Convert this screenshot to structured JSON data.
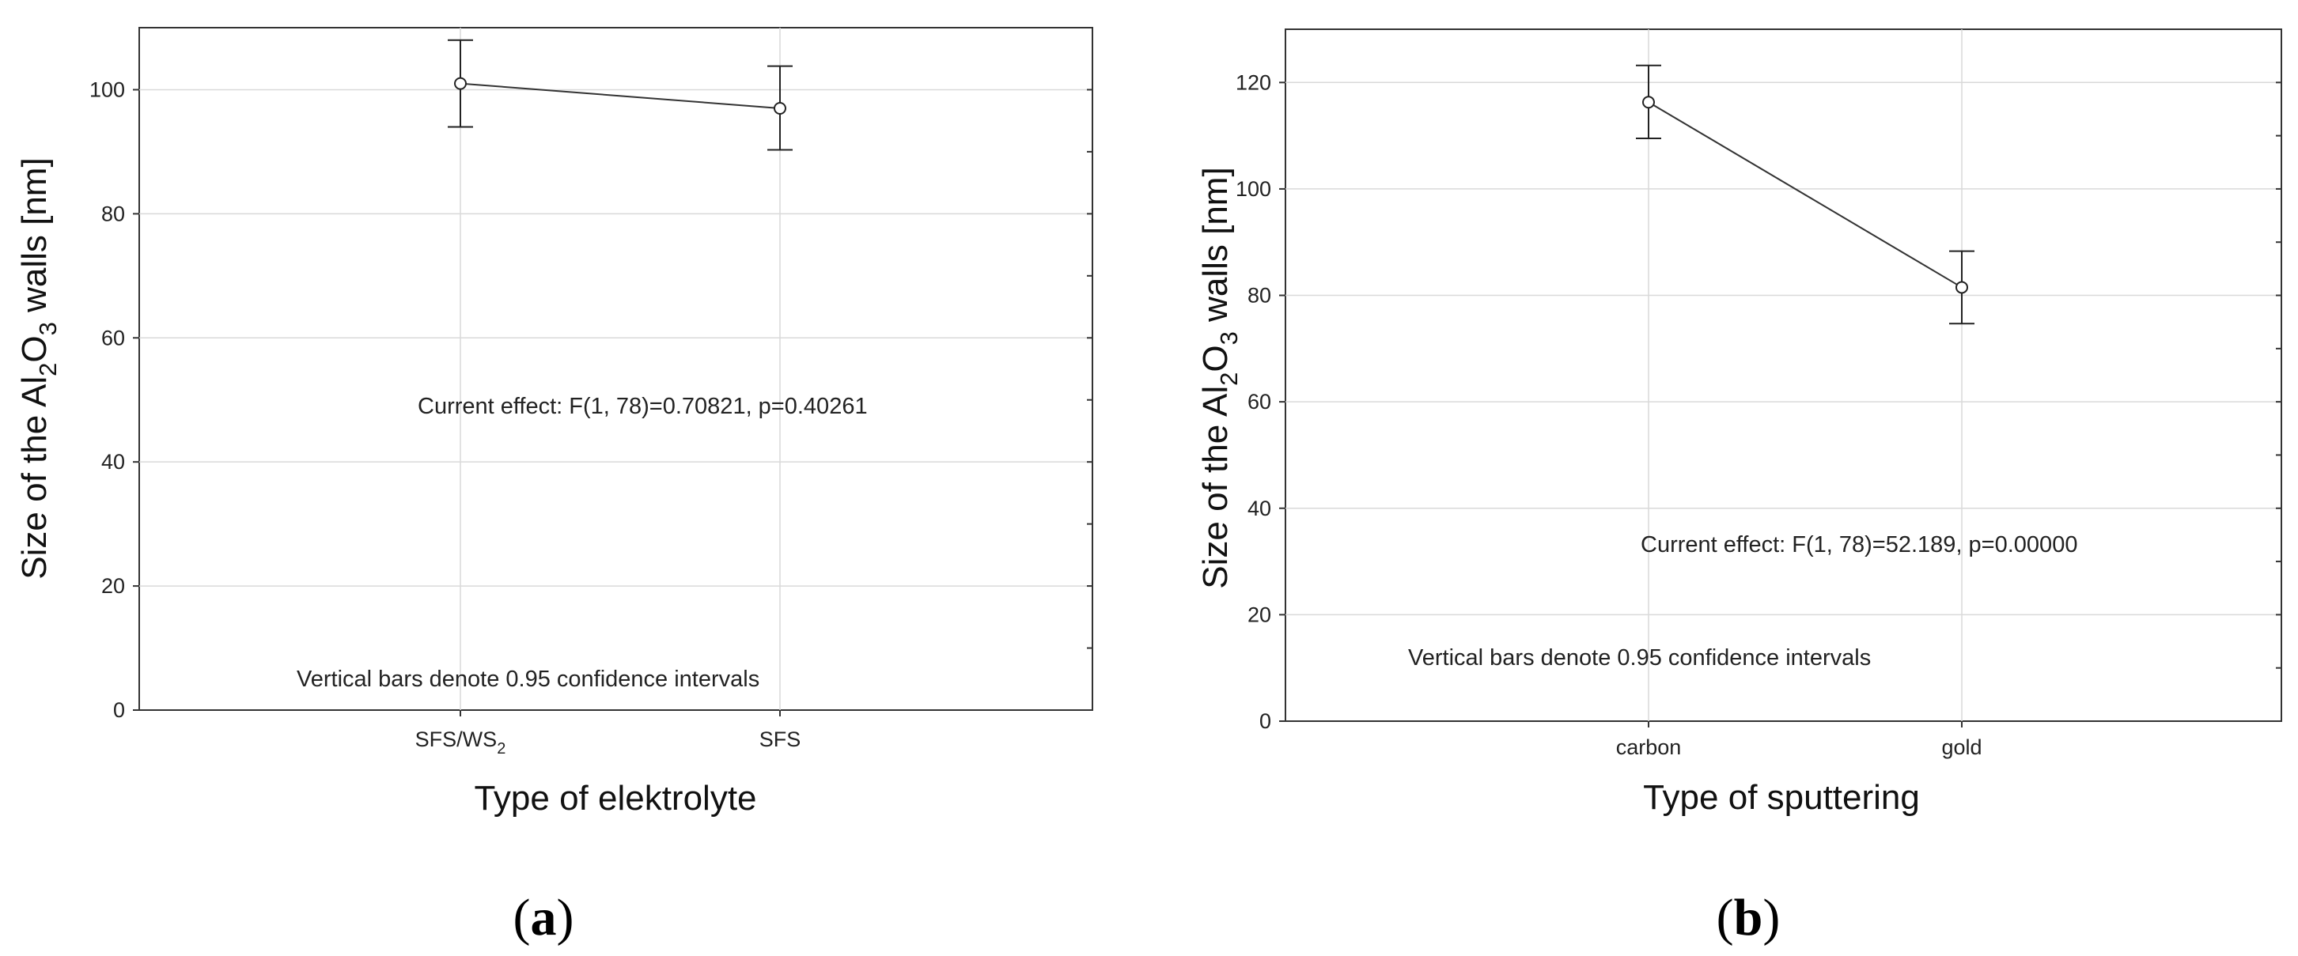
{
  "chart_data": [
    {
      "type": "line",
      "panel_label": "a",
      "categories": [
        "SFS/WS2",
        "SFS"
      ],
      "category_display": [
        {
          "main": "SFS/WS",
          "sub": "2"
        },
        {
          "main": "SFS",
          "sub": ""
        }
      ],
      "series": [
        {
          "values": [
            101,
            97
          ],
          "ci_low": [
            94,
            90.3
          ],
          "ci_high": [
            108,
            103.8
          ]
        }
      ],
      "ylabel_parts": {
        "pre": "Size of the Al",
        "sub1": "2",
        "mid": "O",
        "sub2": "3",
        "post": " walls [nm]"
      },
      "xlabel": "Type of elektrolyte",
      "ylim": [
        0,
        110
      ],
      "yticks": [
        0,
        20,
        40,
        60,
        80,
        100
      ],
      "grid": true,
      "annotations": {
        "effect": "Current effect: F(1, 78)=0.70821, p=0.40261",
        "ci_note": "Vertical bars denote 0.95 confidence intervals"
      }
    },
    {
      "type": "line",
      "panel_label": "b",
      "categories": [
        "carbon",
        "gold"
      ],
      "category_display": [
        {
          "main": "carbon",
          "sub": ""
        },
        {
          "main": "gold",
          "sub": ""
        }
      ],
      "series": [
        {
          "values": [
            116.3,
            81.5
          ],
          "ci_low": [
            109.5,
            74.7
          ],
          "ci_high": [
            123.2,
            88.3
          ]
        }
      ],
      "ylabel_parts": {
        "pre": "Size of the Al",
        "sub1": "2",
        "mid": "O",
        "sub2": "3",
        "post": "  walls [nm]"
      },
      "xlabel": "Type of sputtering",
      "ylim": [
        0,
        130
      ],
      "yticks": [
        0,
        20,
        40,
        60,
        80,
        100,
        120
      ],
      "grid": true,
      "annotations": {
        "effect": "Current effect: F(1, 78)=52.189, p=0.00000",
        "ci_note": "Vertical bars denote 0.95 confidence intervals"
      }
    }
  ]
}
